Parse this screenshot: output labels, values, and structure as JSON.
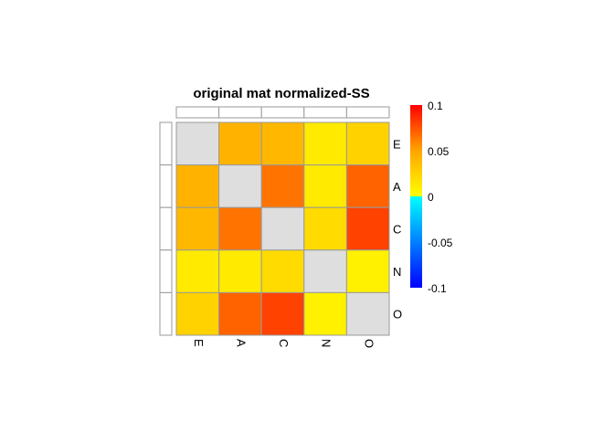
{
  "chart_data": {
    "type": "heatmap",
    "title": "original mat normalized-SS",
    "rows": [
      "E",
      "A",
      "C",
      "N",
      "O"
    ],
    "columns": [
      "E",
      "A",
      "C",
      "N",
      "O"
    ],
    "values": [
      [
        null,
        0.042,
        0.04,
        0.012,
        0.025
      ],
      [
        0.042,
        null,
        0.065,
        0.012,
        0.07
      ],
      [
        0.04,
        0.065,
        null,
        0.02,
        0.08
      ],
      [
        0.012,
        0.012,
        0.02,
        null,
        0.008
      ],
      [
        0.025,
        0.07,
        0.08,
        0.008,
        null
      ]
    ],
    "diagonal_color": "#dedede",
    "colorbar": {
      "range": [
        -0.1,
        0.1
      ],
      "ticks": [
        "0.1",
        "0.05",
        "0",
        "-0.05",
        "-0.1"
      ],
      "tick_values": [
        0.1,
        0.05,
        0,
        -0.05,
        -0.1
      ],
      "stops": [
        {
          "value": -0.1,
          "color": "#0000ff"
        },
        {
          "value": 0,
          "color": "#00ffff"
        },
        {
          "value": 0.0001,
          "color": "#ffff00"
        },
        {
          "value": 0.05,
          "color": "#ffa500"
        },
        {
          "value": 0.1,
          "color": "#ff0000"
        }
      ]
    },
    "grid": true,
    "legend_position": "right"
  }
}
